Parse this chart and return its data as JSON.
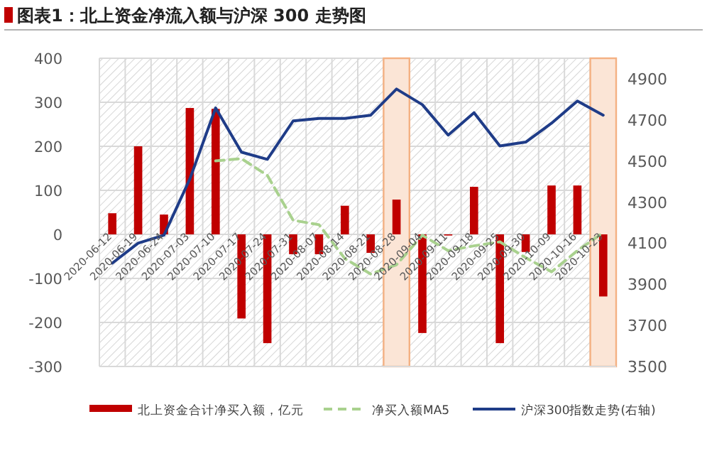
{
  "chart_data": {
    "type": "bar",
    "title": "图表1：北上资金净流入额与沪深 300 走势图",
    "categories": [
      "2020-06-12",
      "2020-06-19",
      "2020-06-24",
      "2020-07-03",
      "2020-07-10",
      "2020-07-17",
      "2020-07-24",
      "2020-07-31",
      "2020-08-07",
      "2020-08-14",
      "2020-08-21",
      "2020-08-28",
      "2020-09-04",
      "2020-09-11",
      "2020-09-18",
      "2020-09-25",
      "2020-09-30",
      "2020-10-09",
      "2020-10-16",
      "2020-10-23"
    ],
    "series": [
      {
        "name": "北上资金合计净买入额，亿元",
        "color": "#c00000",
        "values": [
          48,
          200,
          45,
          287,
          285,
          -191,
          -247,
          -45,
          -45,
          65,
          -42,
          79,
          -224,
          -2,
          108,
          -247,
          -40,
          111,
          111,
          -141
        ]
      },
      {
        "name": "净买入额MA5",
        "type": "line",
        "line_style": "dashed",
        "color": "#a9d18e",
        "values": [
          null,
          null,
          null,
          null,
          167,
          172,
          134,
          32,
          22,
          -55,
          -90,
          -69,
          -2,
          -37,
          -26,
          -17,
          -53,
          -85,
          -37,
          4
        ]
      },
      {
        "name": "沪深300指数走势(右轴)",
        "type": "line",
        "line_style": "solid",
        "axis": "y2",
        "color": "#1f3c88",
        "values": [
          4003,
          4100,
          4139,
          4412,
          4758,
          4543,
          4508,
          4695,
          4707,
          4707,
          4723,
          4850,
          4774,
          4626,
          4735,
          4573,
          4592,
          4684,
          4792,
          4723
        ]
      }
    ],
    "ylim": [
      -300,
      400
    ],
    "yticks": [
      -300,
      -200,
      -100,
      0,
      100,
      200,
      300,
      400
    ],
    "y2lim": [
      3500,
      5000
    ],
    "y2ticks": [
      3500,
      3700,
      3900,
      4100,
      4300,
      4500,
      4700,
      4900
    ],
    "bands": [
      {
        "axis": "x",
        "from": "2020-08-28",
        "to": "2020-08-28",
        "color": "#fbe5d6"
      },
      {
        "axis": "x",
        "from": "2020-10-23",
        "to": "2020-10-23",
        "color": "#fbe5d6"
      }
    ],
    "grid": true,
    "legend": "bottom",
    "marker": "none"
  }
}
